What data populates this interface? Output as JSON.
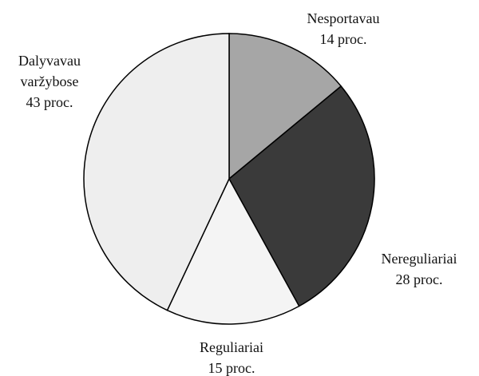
{
  "chart_data": {
    "type": "pie",
    "categories": [
      "Nesportavau",
      "Nereguliariai",
      "Reguliariai",
      "Dalyvavau varžybose"
    ],
    "values": [
      14,
      28,
      15,
      43
    ],
    "value_labels": [
      "14 proc.",
      "28 proc.",
      "15 proc.",
      "43 proc."
    ],
    "colors": [
      "#a6a6a6",
      "#3a3a3a",
      "#f4f4f4",
      "#eeeeee"
    ]
  }
}
